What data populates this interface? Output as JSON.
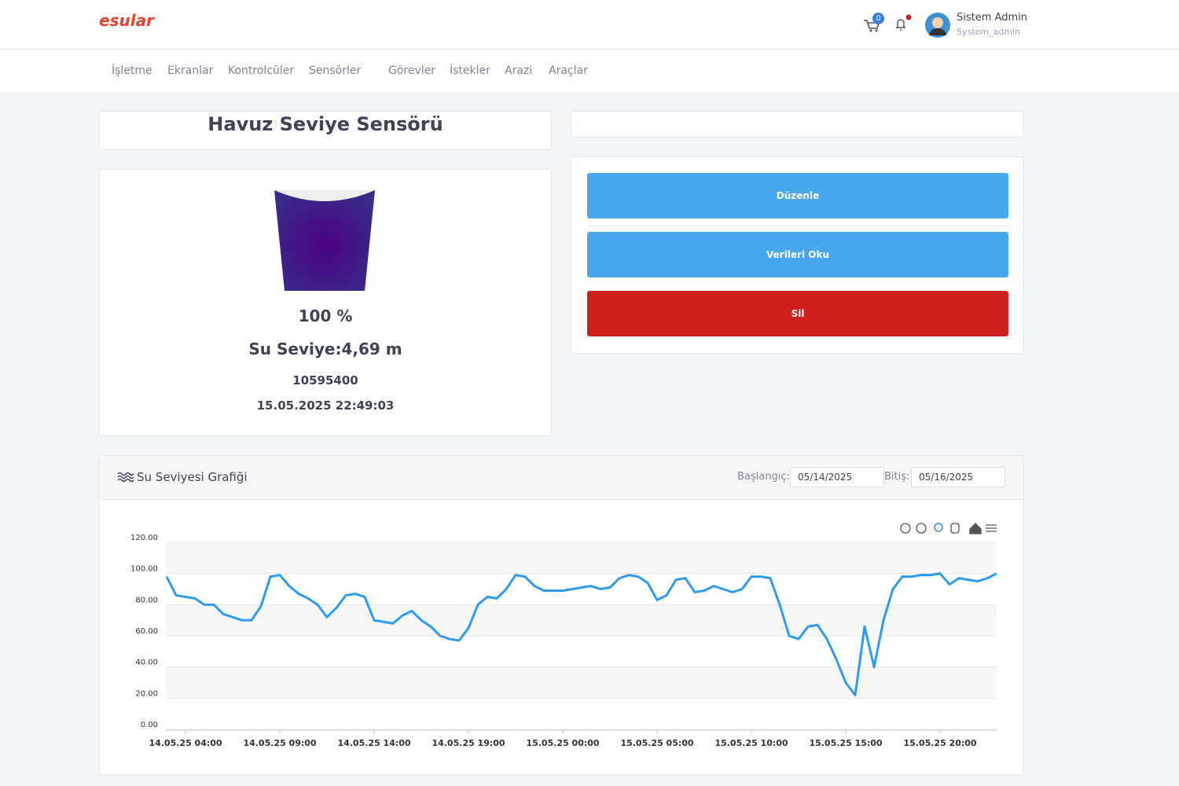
{
  "header": {
    "logo": "esular",
    "cart_count": "0",
    "user_name": "Sistem Admin",
    "user_role": "System_admin"
  },
  "nav": [
    "İşletme",
    "Ekranlar",
    "Kontrolcüler",
    "Sensörler",
    "Görevler",
    "İstekler",
    "Arazi",
    "Araçlar"
  ],
  "sensor": {
    "title": "Havuz Seviye Sensörü",
    "percent": "100 %",
    "level": "Su Seviye:4,69 m",
    "id": "10595400",
    "timestamp": "15.05.2025 22:49:03"
  },
  "actions": [
    "Düzenle",
    "Verileri Oku",
    "Sil"
  ],
  "chart_panel": {
    "title": "Su Seviyesi Grafiği",
    "start_label": "Başlangıç:",
    "start": "05/14/2025",
    "end_label": "Bitiş:",
    "end": "05/16/2025"
  },
  "chart_data": {
    "type": "line",
    "color": "#2e9bf0",
    "grid": true,
    "categories": [
      null,
      null,
      "14.05.25 04:00",
      null,
      null,
      null,
      null,
      null,
      null,
      null,
      null,
      null,
      "14.05.25 09:00",
      null,
      null,
      null,
      null,
      null,
      null,
      null,
      null,
      null,
      "14.05.25 14:00",
      null,
      null,
      null,
      null,
      null,
      null,
      null,
      null,
      null,
      "14.05.25 19:00",
      null,
      null,
      null,
      null,
      null,
      null,
      null,
      null,
      null,
      "15.05.25 00:00",
      null,
      null,
      null,
      null,
      null,
      null,
      null,
      null,
      null,
      "15.05.25 05:00",
      null,
      null,
      null,
      null,
      null,
      null,
      null,
      null,
      null,
      "15.05.25 10:00",
      null,
      null,
      null,
      null,
      null,
      null,
      null,
      null,
      null,
      "15.05.25 15:00",
      null,
      null,
      null,
      null,
      null,
      null,
      null,
      null,
      null,
      "15.05.25 20:00",
      null,
      null,
      null,
      null,
      null,
      null
    ],
    "values": [
      98,
      86,
      85,
      84,
      80,
      80,
      74,
      72,
      70,
      70,
      79,
      98,
      99,
      92,
      87,
      84,
      80,
      72,
      78,
      86,
      87,
      85,
      70,
      69,
      68,
      73,
      76,
      70,
      66,
      60,
      58,
      57,
      65,
      80,
      85,
      84,
      90,
      99,
      98,
      92,
      89,
      89,
      89,
      90,
      91,
      92,
      90,
      91,
      97,
      99,
      98,
      94,
      83,
      86,
      96,
      97,
      88,
      89,
      92,
      90,
      88,
      90,
      98,
      98,
      97,
      80,
      60,
      58,
      66,
      67,
      58,
      45,
      30,
      22,
      66,
      40,
      70,
      90,
      98,
      98,
      99,
      99,
      100,
      93,
      97,
      96,
      95,
      97,
      100
    ],
    "ylim": [
      0,
      120
    ],
    "yticks": [
      {
        "value": 0,
        "label": "0.00"
      },
      {
        "value": 20,
        "label": "20.00"
      },
      {
        "value": 40,
        "label": "40.00"
      },
      {
        "value": 60,
        "label": "60.00"
      },
      {
        "value": 80,
        "label": "80.00"
      },
      {
        "value": 100,
        "label": "100.00"
      },
      {
        "value": 120,
        "label": "120.00"
      }
    ]
  }
}
